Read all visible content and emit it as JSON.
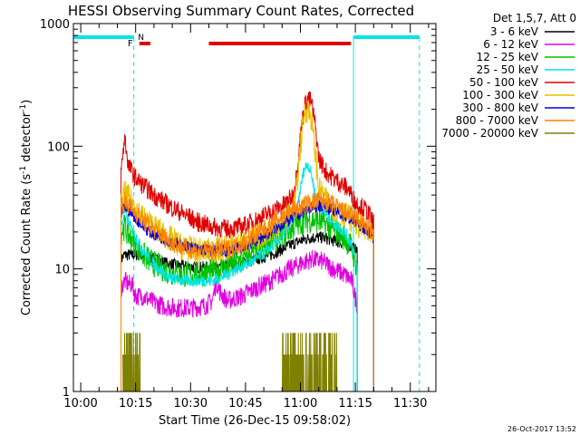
{
  "chart_data": {
    "type": "line",
    "title": "HESSI Observing Summary Count Rates, Corrected",
    "xlabel": "Start Time (26-Dec-15 09:58:02)",
    "ylabel_main": "Corrected Count Rate (s",
    "ylabel_sup1": "-1",
    "ylabel_mid": " detector",
    "ylabel_sup2": "-1",
    "ylabel_end": ")",
    "footer": "26-Oct-2017 13:52",
    "ylog": true,
    "ylim": [
      1,
      1000
    ],
    "xlim_minutes": [
      -2,
      97
    ],
    "yticks": [
      {
        "value": 1,
        "label": "1"
      },
      {
        "value": 10,
        "label": "10"
      },
      {
        "value": 100,
        "label": "100"
      },
      {
        "value": 1000,
        "label": "1000"
      }
    ],
    "xticks": [
      {
        "minute": 0,
        "label": "10:00"
      },
      {
        "minute": 15,
        "label": "10:15"
      },
      {
        "minute": 30,
        "label": "10:30"
      },
      {
        "minute": 45,
        "label": "10:45"
      },
      {
        "minute": 60,
        "label": "11:00"
      },
      {
        "minute": 75,
        "label": "11:15"
      },
      {
        "minute": 90,
        "label": "11:30"
      }
    ],
    "legend": {
      "header": "Det 1,5,7, Att 0",
      "placement": "right"
    },
    "flag_labels": {
      "fast": "F",
      "night": "N"
    },
    "flags": {
      "night": [
        [
          -2,
          14.5
        ],
        [
          74.5,
          92.5
        ]
      ],
      "fast": [
        [
          16,
          19
        ],
        [
          35,
          73.8
        ]
      ],
      "night_color": "#00e5e5",
      "fast_color": "#e00000"
    },
    "data_gaps": [
      [
        -2,
        11
      ],
      [
        75,
        97
      ]
    ],
    "series": [
      {
        "name": "3 - 6 keV",
        "color": "#000000",
        "points": [
          [
            11,
            12
          ],
          [
            12,
            13
          ],
          [
            14,
            13
          ],
          [
            16,
            13
          ],
          [
            18,
            12.5
          ],
          [
            20,
            12
          ],
          [
            24,
            11
          ],
          [
            28,
            10.5
          ],
          [
            32,
            10.3
          ],
          [
            36,
            10.3
          ],
          [
            40,
            10.5
          ],
          [
            44,
            11
          ],
          [
            48,
            12
          ],
          [
            52,
            13
          ],
          [
            56,
            15
          ],
          [
            60,
            17
          ],
          [
            63,
            18
          ],
          [
            66,
            18
          ],
          [
            69,
            17
          ],
          [
            72,
            16
          ],
          [
            74,
            15
          ],
          [
            75.5,
            14
          ]
        ]
      },
      {
        "name": "6 - 12 keV",
        "color": "#e000e0",
        "points": [
          [
            11,
            7
          ],
          [
            12,
            8
          ],
          [
            13,
            7.5
          ],
          [
            14,
            7.5
          ],
          [
            15,
            6
          ],
          [
            17,
            6
          ],
          [
            19,
            5.5
          ],
          [
            22,
            5
          ],
          [
            26,
            4.8
          ],
          [
            30,
            4.8
          ],
          [
            34,
            5
          ],
          [
            36,
            5.5
          ],
          [
            37,
            8
          ],
          [
            38,
            6.5
          ],
          [
            40,
            5.5
          ],
          [
            44,
            6
          ],
          [
            48,
            7
          ],
          [
            52,
            8
          ],
          [
            56,
            9.5
          ],
          [
            60,
            11
          ],
          [
            63,
            12
          ],
          [
            66,
            11.5
          ],
          [
            69,
            10
          ],
          [
            72,
            9
          ],
          [
            74,
            8
          ],
          [
            75.5,
            5
          ]
        ]
      },
      {
        "name": "12 - 25 keV",
        "color": "#00c000",
        "points": [
          [
            11,
            20
          ],
          [
            12,
            22
          ],
          [
            13,
            19
          ],
          [
            15,
            16
          ],
          [
            17,
            13
          ],
          [
            20,
            11
          ],
          [
            24,
            9.5
          ],
          [
            28,
            9
          ],
          [
            32,
            9
          ],
          [
            36,
            9.5
          ],
          [
            40,
            10.5
          ],
          [
            44,
            12
          ],
          [
            48,
            14
          ],
          [
            52,
            17
          ],
          [
            56,
            20
          ],
          [
            60,
            24
          ],
          [
            62,
            25
          ],
          [
            64,
            25
          ],
          [
            66,
            24
          ],
          [
            69,
            21
          ],
          [
            72,
            18
          ],
          [
            74,
            15
          ],
          [
            75.5,
            10
          ]
        ]
      },
      {
        "name": "25 - 50 keV",
        "color": "#00e5e5",
        "points": [
          [
            11,
            22
          ],
          [
            12,
            30
          ],
          [
            13,
            24
          ],
          [
            15,
            18
          ],
          [
            17,
            14
          ],
          [
            20,
            11
          ],
          [
            24,
            8.5
          ],
          [
            28,
            8
          ],
          [
            32,
            8
          ],
          [
            36,
            8
          ],
          [
            40,
            9
          ],
          [
            44,
            10.5
          ],
          [
            48,
            12
          ],
          [
            52,
            15
          ],
          [
            56,
            20
          ],
          [
            59,
            30
          ],
          [
            60,
            45
          ],
          [
            61,
            65
          ],
          [
            62,
            72
          ],
          [
            63,
            60
          ],
          [
            64,
            40
          ],
          [
            66,
            30
          ],
          [
            69,
            24
          ],
          [
            72,
            20
          ],
          [
            74,
            16
          ],
          [
            75.5,
            10
          ]
        ]
      },
      {
        "name": "50 - 100 keV",
        "color": "#e00000",
        "points": [
          [
            11,
            60
          ],
          [
            12,
            120
          ],
          [
            13,
            70
          ],
          [
            15,
            55
          ],
          [
            17,
            48
          ],
          [
            20,
            40
          ],
          [
            24,
            33
          ],
          [
            28,
            28
          ],
          [
            32,
            24
          ],
          [
            36,
            22
          ],
          [
            40,
            21
          ],
          [
            44,
            22
          ],
          [
            48,
            25
          ],
          [
            52,
            29
          ],
          [
            56,
            34
          ],
          [
            58,
            40
          ],
          [
            59,
            60
          ],
          [
            60,
            120
          ],
          [
            61,
            210
          ],
          [
            62,
            245
          ],
          [
            63,
            230
          ],
          [
            64,
            150
          ],
          [
            65,
            80
          ],
          [
            67,
            62
          ],
          [
            70,
            52
          ],
          [
            73,
            45
          ],
          [
            75,
            35
          ],
          [
            78,
            30
          ],
          [
            80,
            24
          ]
        ]
      },
      {
        "name": "100 - 300 keV",
        "color": "#e8c000",
        "points": [
          [
            11,
            32
          ],
          [
            12,
            42
          ],
          [
            13,
            38
          ],
          [
            15,
            32
          ],
          [
            17,
            26
          ],
          [
            20,
            22
          ],
          [
            24,
            18
          ],
          [
            28,
            15
          ],
          [
            32,
            14
          ],
          [
            36,
            14
          ],
          [
            40,
            15
          ],
          [
            44,
            16
          ],
          [
            48,
            18
          ],
          [
            52,
            21
          ],
          [
            56,
            25
          ],
          [
            58,
            30
          ],
          [
            59,
            45
          ],
          [
            60,
            100
          ],
          [
            61,
            180
          ],
          [
            62,
            205
          ],
          [
            63,
            170
          ],
          [
            64,
            90
          ],
          [
            65,
            45
          ],
          [
            67,
            36
          ],
          [
            70,
            30
          ],
          [
            73,
            27
          ],
          [
            75,
            24
          ],
          [
            78,
            20
          ],
          [
            80,
            16
          ]
        ]
      },
      {
        "name": "300 - 800 keV",
        "color": "#0000e0",
        "points": [
          [
            11,
            28
          ],
          [
            12,
            32
          ],
          [
            13,
            30
          ],
          [
            15,
            26
          ],
          [
            17,
            22
          ],
          [
            20,
            19
          ],
          [
            24,
            17
          ],
          [
            28,
            15.5
          ],
          [
            32,
            14.5
          ],
          [
            36,
            14
          ],
          [
            40,
            14
          ],
          [
            44,
            15
          ],
          [
            48,
            17
          ],
          [
            52,
            20
          ],
          [
            56,
            24
          ],
          [
            60,
            28
          ],
          [
            63,
            32
          ],
          [
            66,
            33
          ],
          [
            69,
            30
          ],
          [
            72,
            27
          ],
          [
            75,
            24
          ],
          [
            78,
            21
          ],
          [
            80,
            18
          ]
        ]
      },
      {
        "name": "800 - 7000 keV",
        "color": "#ff8000",
        "points": [
          [
            11,
            33
          ],
          [
            12,
            35
          ],
          [
            13,
            33
          ],
          [
            15,
            29
          ],
          [
            17,
            25
          ],
          [
            20,
            21
          ],
          [
            24,
            17
          ],
          [
            28,
            15
          ],
          [
            32,
            14
          ],
          [
            36,
            14
          ],
          [
            40,
            14.5
          ],
          [
            44,
            16
          ],
          [
            48,
            19
          ],
          [
            52,
            23
          ],
          [
            56,
            28
          ],
          [
            60,
            32
          ],
          [
            63,
            35
          ],
          [
            66,
            36
          ],
          [
            69,
            33
          ],
          [
            72,
            29
          ],
          [
            75,
            26
          ],
          [
            78,
            22
          ],
          [
            80,
            19
          ]
        ]
      },
      {
        "name": "7000 - 20000 keV",
        "color": "#808000",
        "points": [
          [
            11,
            1
          ],
          [
            12,
            2.5
          ],
          [
            13,
            3
          ],
          [
            14,
            2.5
          ],
          [
            15,
            2
          ],
          [
            16,
            1
          ]
        ],
        "noise_segments": [
          [
            11.5,
            16.5
          ],
          [
            55,
            70
          ]
        ],
        "noise_range": [
          1,
          3
        ]
      }
    ]
  }
}
